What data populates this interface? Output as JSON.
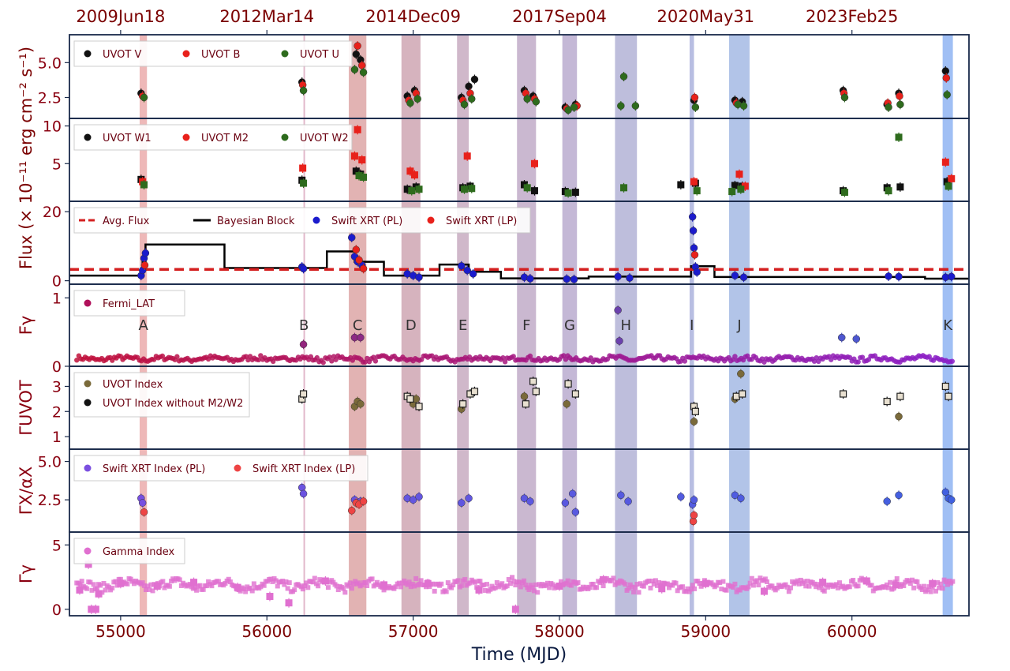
{
  "figure": {
    "x_axis_label": "Time (MJD)",
    "top_axis_ticks": [
      {
        "mjd": 55000,
        "label": "2009Jun18"
      },
      {
        "mjd": 56000,
        "label": "2012Mar14"
      },
      {
        "mjd": 57000,
        "label": "2014Dec09"
      },
      {
        "mjd": 58000,
        "label": "2017Sep04"
      },
      {
        "mjd": 59000,
        "label": "2020May31"
      },
      {
        "mjd": 60000,
        "label": "2023Feb25"
      }
    ],
    "shared_y_label": "Flux (× 10⁻¹¹ erg cm⁻² s⁻¹)"
  },
  "chart_data": {
    "type": "scatter",
    "xlim": [
      54650,
      60800
    ],
    "xticks": [
      55000,
      56000,
      57000,
      58000,
      59000,
      60000
    ],
    "colors": {
      "uvot_v": "#111111",
      "uvot_b": "#e8211b",
      "uvot_u": "#2e6b1d",
      "xrt_pl": "#1b1bcc",
      "avg_flux": "#d42020",
      "fermi": "#b0105a",
      "uvot_index": "#7a6a3a",
      "xrt_index_pl": "#7b4fe0",
      "xrt_index_lp": "#ee4444",
      "gamma_index": "#e070d0"
    },
    "flares": [
      {
        "label": "A",
        "start": 55130,
        "end": 55180,
        "color": "#e8a0a0"
      },
      {
        "label": "B",
        "start": 56250,
        "end": 56256,
        "color": "#d8a0b8"
      },
      {
        "label": "C",
        "start": 56560,
        "end": 56680,
        "color": "#d89a9a"
      },
      {
        "label": "D",
        "start": 56920,
        "end": 57050,
        "color": "#c89aa8"
      },
      {
        "label": "E",
        "start": 57300,
        "end": 57380,
        "color": "#c0a0b8"
      },
      {
        "label": "F",
        "start": 57710,
        "end": 57840,
        "color": "#b8a0c0"
      },
      {
        "label": "G",
        "start": 58020,
        "end": 58120,
        "color": "#b0a0c8"
      },
      {
        "label": "H",
        "start": 58380,
        "end": 58530,
        "color": "#a8a8d0"
      },
      {
        "label": "I",
        "start": 58890,
        "end": 58920,
        "color": "#a0a8d8"
      },
      {
        "label": "J",
        "start": 59160,
        "end": 59300,
        "color": "#98b0e0"
      },
      {
        "label": "K",
        "start": 60620,
        "end": 60690,
        "color": "#80aaf0"
      }
    ],
    "panels": [
      {
        "id": "uvot_optical",
        "ylim": [
          1,
          7
        ],
        "yticks": [
          2.5,
          5.0
        ],
        "ytick_labels": [
          "2.5",
          "5.0"
        ],
        "ylabel": "",
        "legend": [
          "UVOT V",
          "UVOT B",
          "UVOT U"
        ],
        "series": [
          {
            "name": "UVOT V",
            "color": "#111111",
            "marker": "circle",
            "x": [
              55140,
              56240,
              56610,
              56640,
              56960,
              57010,
              57330,
              57380,
              57420,
              57760,
              57820,
              58040,
              58110,
              58920,
              59200,
              59250,
              59940,
              60240,
              60320,
              60640
            ],
            "y": [
              2.8,
              3.6,
              5.6,
              5.2,
              2.6,
              3.0,
              2.5,
              3.3,
              3.8,
              3.0,
              2.6,
              1.8,
              2.0,
              2.3,
              2.3,
              2.2,
              3.0,
              2.0,
              2.8,
              4.4
            ]
          },
          {
            "name": "UVOT B",
            "color": "#e8211b",
            "marker": "circle",
            "x": [
              55150,
              56245,
              56620,
              56650,
              56970,
              57020,
              57340,
              57390,
              57770,
              57830,
              58050,
              58120,
              58925,
              59210,
              59945,
              60245,
              60325,
              60645
            ],
            "y": [
              2.6,
              3.4,
              6.2,
              4.8,
              2.3,
              2.8,
              2.3,
              2.8,
              2.8,
              2.4,
              1.7,
              1.9,
              2.5,
              2.1,
              2.8,
              2.1,
              2.6,
              3.9
            ]
          },
          {
            "name": "UVOT U",
            "color": "#2e6b1d",
            "marker": "circle",
            "x": [
              55160,
              56250,
              56600,
              56660,
              56980,
              57030,
              57350,
              57400,
              57780,
              57840,
              58060,
              58100,
              58420,
              58440,
              58520,
              58930,
              59220,
              59260,
              59950,
              60250,
              60330,
              60650
            ],
            "y": [
              2.5,
              3.0,
              4.5,
              4.3,
              2.1,
              2.4,
              2.0,
              2.4,
              2.4,
              2.2,
              1.6,
              1.8,
              1.9,
              4.0,
              1.9,
              1.8,
              2.0,
              1.9,
              2.5,
              1.8,
              2.0,
              2.7
            ]
          }
        ]
      },
      {
        "id": "uvot_uv",
        "ylim": [
          0,
          11
        ],
        "yticks": [
          5,
          10
        ],
        "ytick_labels": [
          "5",
          "10"
        ],
        "ylabel": "",
        "legend": [
          "UVOT W1",
          "UVOT M2",
          "UVOT W2"
        ],
        "series": [
          {
            "name": "UVOT W1",
            "color": "#111111",
            "marker": "square",
            "x": [
              55140,
              56240,
              56610,
              56640,
              56960,
              57020,
              57340,
              57390,
              57760,
              57830,
              58040,
              58110,
              58830,
              58930,
              59200,
              59250,
              59940,
              60240,
              60330,
              60650
            ],
            "y": [
              2.9,
              2.8,
              4.0,
              3.6,
              1.6,
              1.9,
              1.8,
              2.0,
              2.2,
              1.4,
              1.3,
              1.2,
              2.2,
              2.4,
              2.1,
              2.0,
              1.4,
              1.8,
              1.9,
              2.6
            ]
          },
          {
            "name": "UVOT M2",
            "color": "#e8211b",
            "marker": "square",
            "x": [
              55150,
              56245,
              56600,
              56620,
              56650,
              56980,
              57010,
              57370,
              57830,
              58920,
              59230,
              59270,
              60640,
              60680
            ],
            "y": [
              2.6,
              4.4,
              6.0,
              9.5,
              5.5,
              4.0,
              3.5,
              6.0,
              5.0,
              2.6,
              3.6,
              2.0,
              5.2,
              3.0
            ]
          },
          {
            "name": "UVOT W2",
            "color": "#2e6b1d",
            "marker": "square",
            "x": [
              55160,
              56250,
              56630,
              56660,
              56990,
              57040,
              57350,
              57400,
              57780,
              58060,
              58440,
              58940,
              59180,
              59240,
              59950,
              60250,
              60320,
              60660
            ],
            "y": [
              2.2,
              2.4,
              3.4,
              3.2,
              1.4,
              1.6,
              1.6,
              1.7,
              1.8,
              1.1,
              1.8,
              1.4,
              1.3,
              1.6,
              1.2,
              1.4,
              8.5,
              2.0
            ]
          }
        ]
      },
      {
        "id": "xray_flux",
        "ylim": [
          -1,
          23
        ],
        "yticks": [
          0,
          20
        ],
        "ytick_labels": [
          "0",
          "20"
        ],
        "ylabel": "",
        "legend": [
          "Avg. Flux",
          "Bayesian Block",
          "Swift XRT (PL)",
          "Swift XRT (LP)"
        ],
        "avg_flux": 3.3,
        "bayesian_blocks": [
          {
            "x0": 54650,
            "x1": 55150,
            "y": 1.5
          },
          {
            "x0": 55150,
            "x1": 55170,
            "y": 5.5
          },
          {
            "x0": 55170,
            "x1": 55710,
            "y": 10.5
          },
          {
            "x0": 55710,
            "x1": 56410,
            "y": 3.7
          },
          {
            "x0": 56410,
            "x1": 56600,
            "y": 8.5
          },
          {
            "x0": 56600,
            "x1": 56800,
            "y": 5.5
          },
          {
            "x0": 56800,
            "x1": 57180,
            "y": 1.5
          },
          {
            "x0": 57180,
            "x1": 57380,
            "y": 4.7
          },
          {
            "x0": 57380,
            "x1": 57600,
            "y": 2.6
          },
          {
            "x0": 57600,
            "x1": 58200,
            "y": 0.7
          },
          {
            "x0": 58200,
            "x1": 58900,
            "y": 1.2
          },
          {
            "x0": 58900,
            "x1": 59060,
            "y": 4.2
          },
          {
            "x0": 59060,
            "x1": 60500,
            "y": 1.1
          },
          {
            "x0": 60500,
            "x1": 60800,
            "y": 0.6
          }
        ],
        "series": [
          {
            "name": "Swift XRT (PL)",
            "color": "#1b1bcc",
            "marker": "circle",
            "x": [
              55140,
              55150,
              55160,
              55170,
              56240,
              56250,
              56580,
              56600,
              56620,
              56650,
              56960,
              57000,
              57040,
              57330,
              57370,
              57410,
              57760,
              57800,
              58050,
              58100,
              58400,
              58480,
              58910,
              58915,
              58920,
              58930,
              58940,
              59200,
              59260,
              60250,
              60320,
              60640,
              60680
            ],
            "y": [
              1.5,
              3.0,
              6.5,
              8.0,
              4.0,
              3.5,
              12.5,
              7.0,
              5.5,
              4.5,
              2.0,
              1.5,
              1.0,
              4.3,
              3.0,
              2.0,
              1.0,
              0.6,
              0.5,
              0.4,
              1.2,
              0.8,
              18.5,
              14.5,
              9.5,
              4.0,
              2.5,
              1.5,
              1.0,
              1.3,
              1.2,
              1.0,
              1.2
            ]
          },
          {
            "name": "Swift XRT (LP)",
            "color": "#e8211b",
            "marker": "circle",
            "x": [
              55165,
              56610,
              56630,
              56660,
              58925
            ],
            "y": [
              4.5,
              9.0,
              6.0,
              3.5,
              7.5
            ]
          }
        ]
      },
      {
        "id": "gamma_flux",
        "ylim": [
          0,
          1.2
        ],
        "yticks": [
          0,
          1
        ],
        "ytick_labels": [
          "0",
          "1"
        ],
        "ylabel": "Fγ",
        "legend": [
          "Fermi_LAT"
        ],
        "series": [
          {
            "name": "Fermi_LAT",
            "color": "#b0105a",
            "marker": "circle",
            "gradient": true,
            "x": [
              56250,
              56600,
              56640,
              58400,
              58410,
              59930,
              60030
            ],
            "y": [
              0.32,
              0.42,
              0.42,
              0.82,
              0.37,
              0.42,
              0.4
            ]
          }
        ]
      },
      {
        "id": "uvot_index",
        "ylim": [
          0.5,
          3.8
        ],
        "yticks": [
          1,
          2,
          3
        ],
        "ytick_labels": [
          "1",
          "2",
          "3"
        ],
        "ylabel": "ΓUVOT",
        "legend": [
          "UVOT Index",
          "UVOT Index without M2/W2"
        ],
        "series": [
          {
            "name": "UVOT Index",
            "color": "#7a6a3a",
            "marker": "circle",
            "x": [
              56600,
              56620,
              56640,
              57000,
              57020,
              57330,
              57760,
              58050,
              58920,
              59200,
              59240,
              60320
            ],
            "y": [
              2.2,
              2.4,
              2.3,
              2.3,
              2.5,
              2.1,
              2.6,
              2.3,
              1.6,
              2.5,
              3.5,
              1.8
            ]
          },
          {
            "name": "UVOT Index without M2/W2",
            "color": "#111111",
            "marker": "square-open",
            "x": [
              56240,
              56250,
              56960,
              56980,
              57040,
              57340,
              57390,
              57420,
              57770,
              57820,
              57840,
              58060,
              58110,
              58920,
              58930,
              59210,
              59250,
              59940,
              60240,
              60330,
              60640,
              60660
            ],
            "y": [
              2.5,
              2.7,
              2.6,
              2.5,
              2.2,
              2.3,
              2.7,
              2.8,
              2.3,
              3.2,
              2.8,
              3.1,
              2.7,
              2.2,
              2.0,
              2.6,
              2.7,
              2.7,
              2.4,
              2.6,
              3.0,
              2.6
            ]
          }
        ]
      },
      {
        "id": "xray_index",
        "ylim": [
          0.4,
          5.8
        ],
        "yticks": [
          2.5,
          5.0
        ],
        "ytick_labels": [
          "2.5",
          "5.0"
        ],
        "ylabel": "ΓX/αX",
        "legend": [
          "Swift XRT Index (PL)",
          "Swift XRT Index (LP)"
        ],
        "series": [
          {
            "name": "Swift XRT Index (PL)",
            "color": "#7b4fe0",
            "marker": "circle",
            "gradient": true,
            "x": [
              55140,
              55150,
              56240,
              56250,
              56600,
              56640,
              56960,
              57000,
              57040,
              57330,
              57380,
              57760,
              57800,
              58040,
              58090,
              58110,
              58420,
              58470,
              58830,
              58910,
              58920,
              59200,
              59240,
              60240,
              60320,
              60640,
              60660,
              60680
            ],
            "y": [
              2.6,
              2.3,
              3.3,
              2.9,
              2.5,
              2.4,
              2.6,
              2.5,
              2.7,
              2.3,
              2.6,
              2.6,
              2.4,
              2.3,
              2.9,
              1.7,
              2.8,
              2.4,
              2.7,
              2.2,
              2.5,
              2.8,
              2.6,
              2.4,
              2.8,
              3.0,
              2.6,
              2.5
            ]
          },
          {
            "name": "Swift XRT Index (LP)",
            "color": "#ee4444",
            "marker": "circle",
            "x": [
              55160,
              56580,
              56610,
              56630,
              56660,
              58915,
              58920
            ],
            "y": [
              1.7,
              1.8,
              2.3,
              2.2,
              2.4,
              1.1,
              1.5
            ]
          }
        ]
      },
      {
        "id": "gamma_index",
        "ylim": [
          -0.5,
          6
        ],
        "yticks": [
          0,
          5
        ],
        "ytick_labels": [
          "0",
          "5"
        ],
        "ylabel": "Γγ",
        "legend": [
          "Gamma Index"
        ],
        "series": [
          {
            "name": "Gamma Index",
            "color": "#e070d0",
            "marker": "square",
            "x": [
              54720,
              54780,
              54800,
              54830,
              54850,
              55000,
              55250,
              55500,
              55800,
              56020,
              56150,
              56400,
              56800,
              57100,
              57450,
              57700,
              58000,
              58300,
              58700,
              59000,
              59400,
              59800,
              60100,
              60300,
              60550
            ],
            "y": [
              1.5,
              3.5,
              0.0,
              0.0,
              1.2,
              2.0,
              1.8,
              2.1,
              1.7,
              1.0,
              0.5,
              2.2,
              1.9,
              2.0,
              1.5,
              0.0,
              1.8,
              2.3,
              1.6,
              2.0,
              1.4,
              2.1,
              2.2,
              1.9,
              2.0
            ]
          }
        ]
      }
    ]
  }
}
